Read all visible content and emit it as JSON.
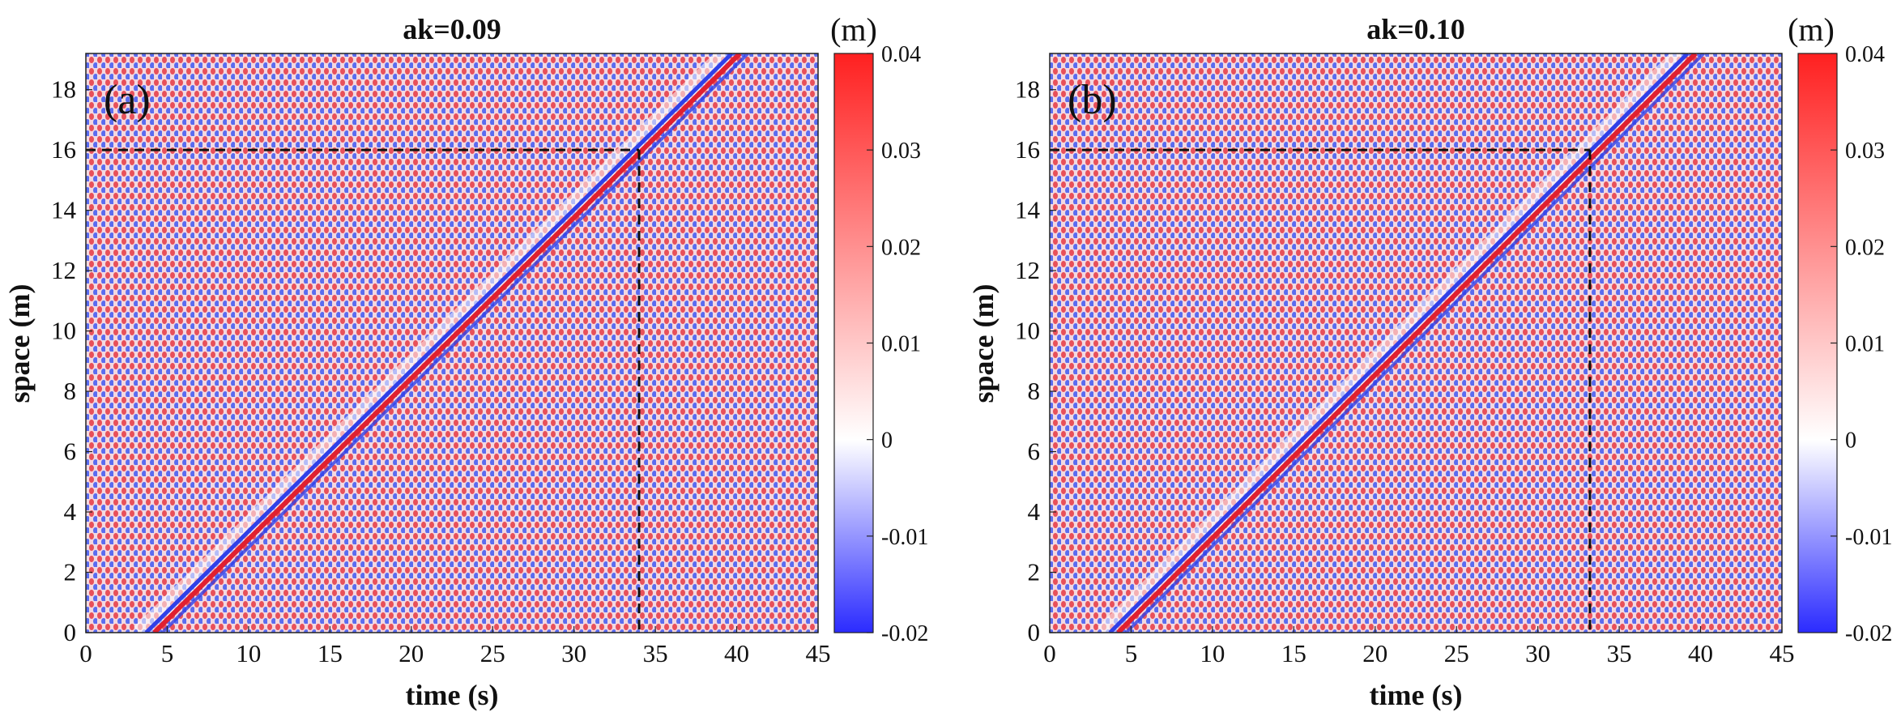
{
  "chart_data": [
    {
      "type": "heatmap",
      "title": "ak=0.09",
      "panel_label": "(a)",
      "xlabel": "time (s)",
      "ylabel": "space (m)",
      "xlim": [
        0,
        45
      ],
      "ylim": [
        0,
        19.2
      ],
      "xticks": [
        0,
        5,
        10,
        15,
        20,
        25,
        30,
        35,
        40,
        45
      ],
      "yticks": [
        0,
        2,
        4,
        6,
        8,
        10,
        12,
        14,
        16,
        18
      ],
      "xtick_labels": [
        "0",
        "5",
        "10",
        "15",
        "20",
        "25",
        "30",
        "35",
        "40",
        "45"
      ],
      "ytick_labels": [
        "0",
        "2",
        "4",
        "6",
        "8",
        "10",
        "12",
        "14",
        "16",
        "18"
      ],
      "grid": false,
      "dashed_line": {
        "x": 34.0,
        "y": 16.0
      },
      "diagonal_feature": {
        "t_start": 4.0,
        "x_start": 0.0,
        "t_end": 40.0,
        "x_end": 19.2
      },
      "colorbar": {
        "unit": "(m)",
        "range": [
          -0.02,
          0.04
        ],
        "ticks": [
          -0.02,
          -0.01,
          0,
          0.01,
          0.02,
          0.03,
          0.04
        ],
        "tick_labels": [
          "-0.02",
          "-0.01",
          "0",
          "0.01",
          "0.02",
          "0.03",
          "0.04"
        ],
        "colormap": [
          "#2b2bff",
          "#ffffff",
          "#ff2020"
        ]
      }
    },
    {
      "type": "heatmap",
      "title": "ak=0.10",
      "panel_label": "(b)",
      "xlabel": "time (s)",
      "ylabel": "space (m)",
      "xlim": [
        0,
        45
      ],
      "ylim": [
        0,
        19.2
      ],
      "xticks": [
        0,
        5,
        10,
        15,
        20,
        25,
        30,
        35,
        40,
        45
      ],
      "yticks": [
        0,
        2,
        4,
        6,
        8,
        10,
        12,
        14,
        16,
        18
      ],
      "xtick_labels": [
        "0",
        "5",
        "10",
        "15",
        "20",
        "25",
        "30",
        "35",
        "40",
        "45"
      ],
      "ytick_labels": [
        "0",
        "2",
        "4",
        "6",
        "8",
        "10",
        "12",
        "14",
        "16",
        "18"
      ],
      "grid": false,
      "dashed_line": {
        "x": 33.2,
        "y": 16.0
      },
      "diagonal_feature": {
        "t_start": 4.0,
        "x_start": 0.0,
        "t_end": 39.5,
        "x_end": 19.2
      },
      "colorbar": {
        "unit": "(m)",
        "range": [
          -0.02,
          0.04
        ],
        "ticks": [
          -0.02,
          -0.01,
          0,
          0.01,
          0.02,
          0.03,
          0.04
        ],
        "tick_labels": [
          "-0.02",
          "-0.01",
          "0",
          "0.01",
          "0.02",
          "0.03",
          "0.04"
        ],
        "colormap": [
          "#2b2bff",
          "#ffffff",
          "#ff2020"
        ]
      }
    }
  ]
}
